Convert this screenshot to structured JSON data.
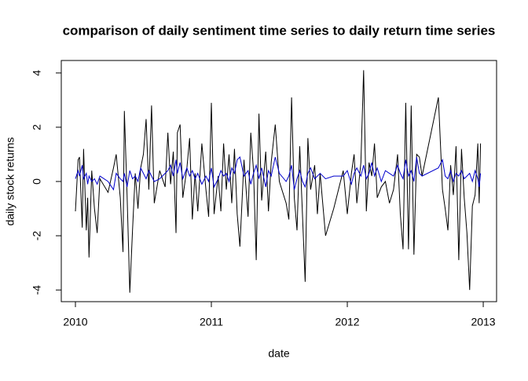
{
  "chart_data": {
    "type": "line",
    "title": "comparison of daily sentiment time series to daily return time series",
    "x_label": "date",
    "y_label": "daily stock returns",
    "x": [
      2010.0,
      2010.02,
      2010.03,
      2010.05,
      2010.06,
      2010.08,
      2010.09,
      2010.1,
      2010.12,
      2010.14,
      2010.16,
      2010.18,
      2010.24,
      2010.28,
      2010.3,
      2010.33,
      2010.35,
      2010.36,
      2010.38,
      2010.4,
      2010.42,
      2010.44,
      2010.46,
      2010.48,
      2010.5,
      2010.52,
      2010.54,
      2010.56,
      2010.58,
      2010.62,
      2010.66,
      2010.68,
      2010.7,
      2010.72,
      2010.74,
      2010.75,
      2010.77,
      2010.79,
      2010.82,
      2010.84,
      2010.86,
      2010.88,
      2010.9,
      2010.93,
      2010.96,
      2010.98,
      2011.0,
      2011.02,
      2011.05,
      2011.07,
      2011.09,
      2011.11,
      2011.13,
      2011.15,
      2011.17,
      2011.19,
      2011.21,
      2011.24,
      2011.27,
      2011.29,
      2011.31,
      2011.33,
      2011.35,
      2011.37,
      2011.4,
      2011.42,
      2011.44,
      2011.47,
      2011.5,
      2011.55,
      2011.57,
      2011.59,
      2011.61,
      2011.63,
      2011.65,
      2011.67,
      2011.69,
      2011.71,
      2011.73,
      2011.76,
      2011.78,
      2011.8,
      2011.84,
      2011.9,
      2011.97,
      2012.0,
      2012.03,
      2012.05,
      2012.07,
      2012.1,
      2012.12,
      2012.14,
      2012.16,
      2012.18,
      2012.2,
      2012.22,
      2012.25,
      2012.28,
      2012.31,
      2012.34,
      2012.37,
      2012.39,
      2012.41,
      2012.43,
      2012.45,
      2012.47,
      2012.49,
      2012.51,
      2012.53,
      2012.55,
      2012.67,
      2012.7,
      2012.72,
      2012.74,
      2012.76,
      2012.78,
      2012.8,
      2012.82,
      2012.84,
      2012.86,
      2012.88,
      2012.9,
      2012.92,
      2012.94,
      2012.96,
      2012.97,
      2012.98
    ],
    "series": [
      {
        "name": "daily stock returns",
        "color": "#000000",
        "values": [
          -1.1,
          0.8,
          0.9,
          -1.7,
          1.2,
          -1.8,
          -0.6,
          -2.8,
          0.4,
          -1.0,
          -1.9,
          0.1,
          -0.4,
          0.5,
          1.0,
          -0.6,
          -2.6,
          2.6,
          -0.5,
          -4.1,
          -1.8,
          0.3,
          -1.0,
          0.5,
          1.0,
          2.3,
          -0.3,
          2.8,
          -0.8,
          0.4,
          -0.2,
          1.8,
          -0.1,
          1.1,
          -1.9,
          1.8,
          2.1,
          -0.6,
          0.5,
          1.6,
          -1.4,
          0.3,
          -1.1,
          1.4,
          -0.3,
          -1.3,
          2.9,
          -1.2,
          0.2,
          -1.1,
          1.4,
          -0.3,
          1.0,
          -0.8,
          1.2,
          -1.2,
          -2.4,
          0.8,
          -1.3,
          1.8,
          0.4,
          -2.9,
          2.5,
          -0.7,
          1.1,
          -1.1,
          0.7,
          2.1,
          0.0,
          -0.8,
          -1.4,
          3.1,
          -0.6,
          -1.8,
          1.3,
          -1.2,
          -3.7,
          1.6,
          -0.3,
          0.6,
          -1.2,
          0.3,
          -2.0,
          -1.0,
          0.4,
          -1.2,
          0.3,
          1.0,
          -0.8,
          0.7,
          4.1,
          -1.1,
          0.7,
          0.2,
          1.4,
          -0.6,
          -0.2,
          0.0,
          -0.8,
          -0.3,
          1.0,
          -1.2,
          -2.5,
          2.9,
          -2.5,
          2.8,
          -2.7,
          1.0,
          0.9,
          0.2,
          3.1,
          -0.3,
          -1.0,
          -1.8,
          0.6,
          -0.5,
          1.3,
          -2.9,
          1.2,
          -0.6,
          -1.9,
          -4.0,
          -0.9,
          -0.5,
          1.4,
          -0.8,
          1.4
        ]
      },
      {
        "name": "daily sentiment",
        "color": "#0000cc",
        "values": [
          0.1,
          0.4,
          0.2,
          0.6,
          0.1,
          0.3,
          -0.1,
          0.2,
          0.0,
          0.1,
          -0.1,
          0.2,
          0.0,
          -0.3,
          0.3,
          0.1,
          0.0,
          0.3,
          -0.2,
          0.4,
          0.1,
          0.2,
          0.0,
          0.5,
          0.3,
          0.1,
          0.4,
          0.2,
          0.0,
          0.1,
          0.3,
          0.4,
          0.6,
          0.2,
          0.8,
          0.3,
          0.7,
          0.1,
          0.5,
          0.2,
          0.4,
          0.1,
          0.3,
          -0.1,
          0.2,
          0.0,
          0.5,
          -0.2,
          0.1,
          0.4,
          0.2,
          0.3,
          0.0,
          0.5,
          0.3,
          0.8,
          0.9,
          0.2,
          0.4,
          -0.1,
          0.3,
          0.6,
          0.1,
          0.5,
          -0.2,
          0.4,
          0.2,
          0.9,
          0.3,
          0.0,
          0.2,
          0.6,
          -0.3,
          0.1,
          0.4,
          0.0,
          -0.2,
          0.3,
          0.5,
          0.1,
          0.2,
          0.3,
          0.1,
          0.2,
          0.2,
          0.4,
          -0.1,
          0.3,
          0.5,
          0.2,
          0.6,
          0.1,
          0.3,
          0.7,
          0.2,
          0.5,
          0.0,
          0.4,
          0.3,
          0.2,
          0.6,
          0.3,
          0.1,
          0.8,
          0.2,
          0.4,
          0.0,
          0.9,
          0.3,
          0.2,
          0.5,
          0.8,
          0.2,
          0.1,
          0.4,
          0.0,
          0.3,
          0.2,
          0.4,
          0.1,
          0.2,
          0.3,
          0.0,
          0.4,
          0.1,
          -0.2,
          0.3
        ]
      }
    ],
    "xlim": [
      2009.896,
      2013.098
    ],
    "xticks": [
      2010,
      2011,
      2012,
      2013
    ],
    "ylim": [
      -4.43,
      4.46
    ],
    "yticks": [
      -4,
      -2,
      0,
      2,
      4
    ]
  }
}
